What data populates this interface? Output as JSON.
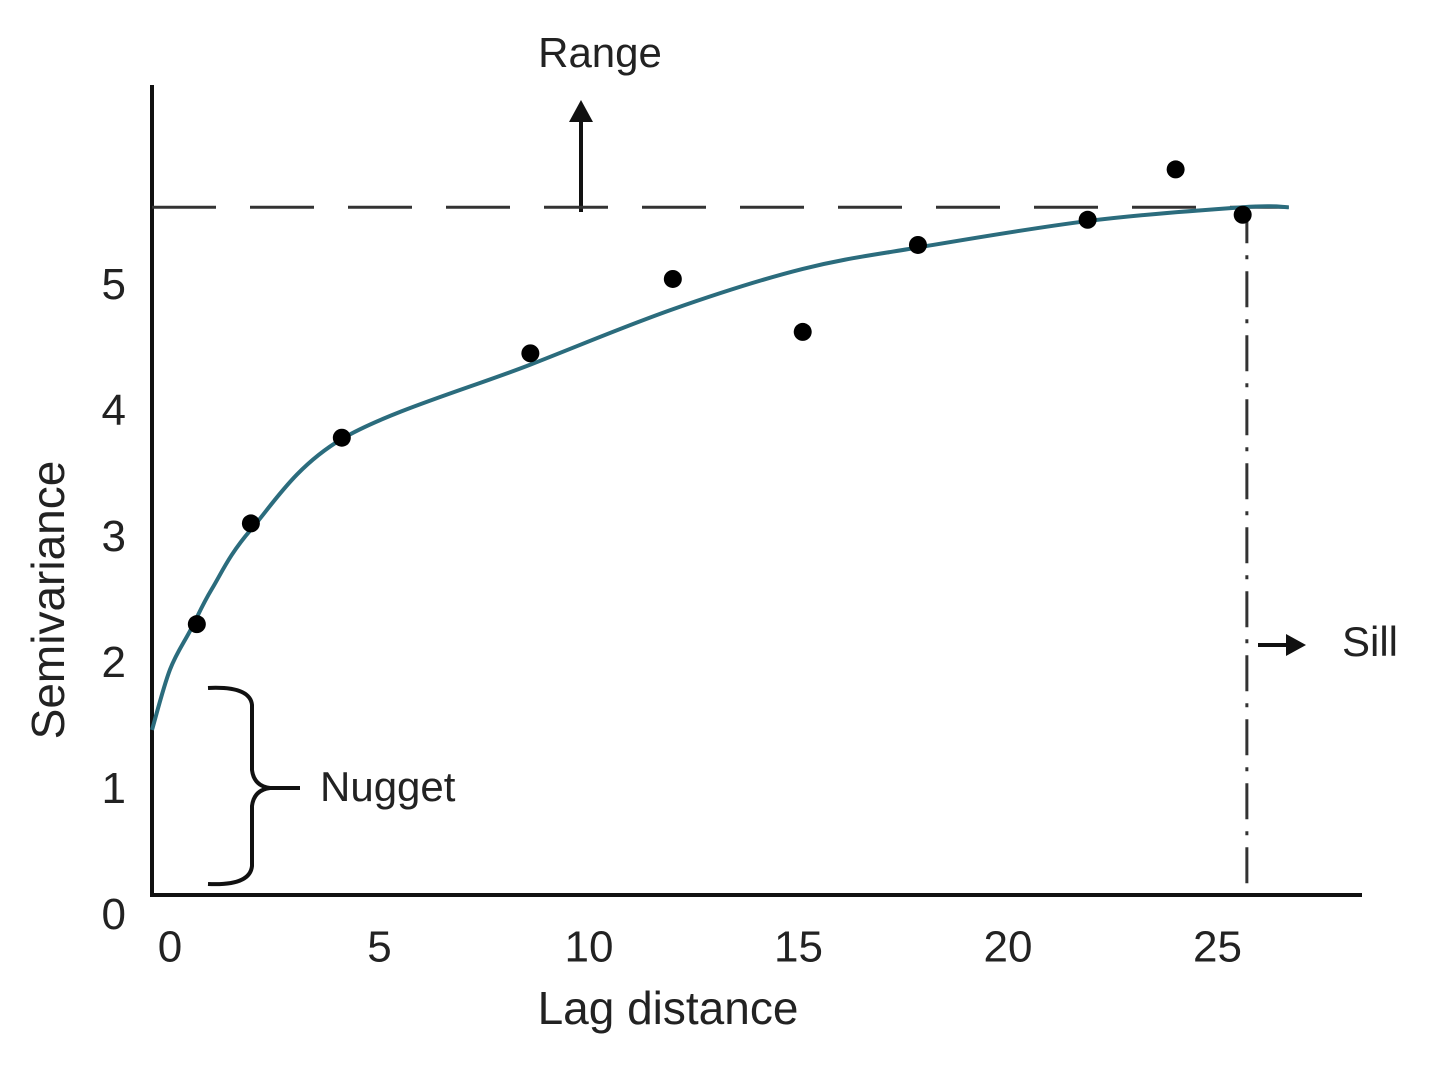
{
  "chart_data": {
    "type": "scatter",
    "x_label": "Lag distance",
    "y_label": "Semivariance",
    "x": [
      0.64,
      1.93,
      4.1,
      8.6,
      12.0,
      15.1,
      17.85,
      21.9,
      24.0,
      25.6
    ],
    "y": [
      2.28,
      3.08,
      3.76,
      4.43,
      5.02,
      4.6,
      5.29,
      5.49,
      5.89,
      5.53
    ],
    "color": "#000000",
    "curve": {
      "x": [
        -0.43,
        0,
        0.5,
        1,
        1.93,
        4.1,
        8.6,
        12,
        15.1,
        17.85,
        21.9,
        25.6,
        26.7
      ],
      "y": [
        1.44,
        1.92,
        2.24,
        2.56,
        3.03,
        3.75,
        4.34,
        4.78,
        5.1,
        5.27,
        5.48,
        5.59,
        5.59
      ],
      "color": "#2b6c7d"
    },
    "sill_line": 5.59,
    "range_line": 25.7,
    "line_color": "#333333",
    "annotations": {
      "range": "Range",
      "sill": "Sill",
      "nugget": "Nugget"
    },
    "xlim": [
      -0.43,
      28.4
    ],
    "ylim": [
      0.13,
      6.56
    ],
    "xticks": [
      0,
      5,
      10,
      15,
      20,
      25
    ],
    "yticks": [
      0,
      1,
      2,
      3,
      4,
      5
    ],
    "grid": false
  }
}
